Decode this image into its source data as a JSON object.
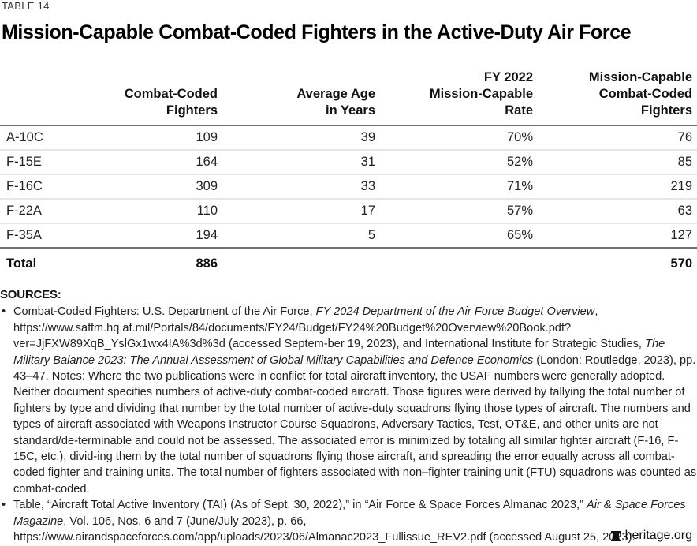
{
  "kicker": "TABLE 14",
  "title": "Mission-Capable Combat-Coded Fighters in the Active-Duty Air Force",
  "table": {
    "headers": [
      [
        ""
      ],
      [
        "Combat-Coded",
        "Fighters"
      ],
      [
        "Average Age",
        "in Years"
      ],
      [
        "FY 2022",
        "Mission-Capable",
        "Rate"
      ],
      [
        "Mission-Capable",
        "Combat-Coded",
        "Fighters"
      ]
    ],
    "rows": [
      [
        "A-10C",
        "109",
        "39",
        "70%",
        "76"
      ],
      [
        "F-15E",
        "164",
        "31",
        "52%",
        "85"
      ],
      [
        "F-16C",
        "309",
        "33",
        "71%",
        "219"
      ],
      [
        "F-22A",
        "110",
        "17",
        "57%",
        "63"
      ],
      [
        "F-35A",
        "194",
        "5",
        "65%",
        "127"
      ]
    ],
    "total": [
      "Total",
      "886",
      "",
      "",
      "570"
    ]
  },
  "sources": {
    "label": "SOURCES:",
    "items": [
      {
        "parts": [
          {
            "t": "Combat-Coded Fighters: U.S. Department of the Air Force, "
          },
          {
            "t": "FY 2024 Department of the Air Force Budget Overview",
            "i": true
          },
          {
            "t": ", https://www.saffm.hq.af.mil/Portals/84/documents/FY24/Budget/FY24%20Budget%20Overview%20Book.pdf?ver=JjFXW89XqB_YslGx1wx4IA%3d%3d (accessed Septem-ber 19, 2023), and International Institute for Strategic Studies, "
          },
          {
            "t": "The Military Balance 2023: The Annual Assessment of Global Military Capabilities and Defence Economics",
            "i": true
          },
          {
            "t": " (London: Routledge, 2023), pp. 43–47. Notes: Where the two publications were in conflict for total aircraft inventory, the USAF numbers were generally adopted. Neither document specifies numbers of active-duty combat-coded aircraft. Those figures were derived by tallying the total number of fighters by type and dividing that number by the total number of active-duty squadrons flying those types of aircraft. The numbers and types of aircraft associated with Weapons Instructor Course Squadrons, Adversary Tactics, Test, OT&E, and other units are not standard/de-terminable and could not be assessed. The associated error is minimized by totaling all similar fighter aircraft (F-16, F-15C, etc.), divid-ing them by the total number of squadrons flying those aircraft, and spreading the error equally across all combat-coded fighter and training units. The total number of fighters associated with non–fighter training unit (FTU) squadrons was counted as combat-coded."
          }
        ]
      },
      {
        "parts": [
          {
            "t": "Table, “Aircraft Total Active Inventory (TAI) (As of Sept. 30, 2022),” in “Air Force & Space Forces Almanac 2023,” "
          },
          {
            "t": "Air & Space Forces Magazine",
            "i": true
          },
          {
            "t": ", Vol. 106, Nos. 6 and 7 (June/July 2023), p. 66, https://www.airandspaceforces.com/app/uploads/2023/06/Almanac2023_Fullissue_REV2.pdf (accessed August 25, 2023)."
          }
        ]
      }
    ]
  },
  "footer": {
    "logo_icon": "liberty-bell-icon",
    "site": "heritage.org"
  }
}
